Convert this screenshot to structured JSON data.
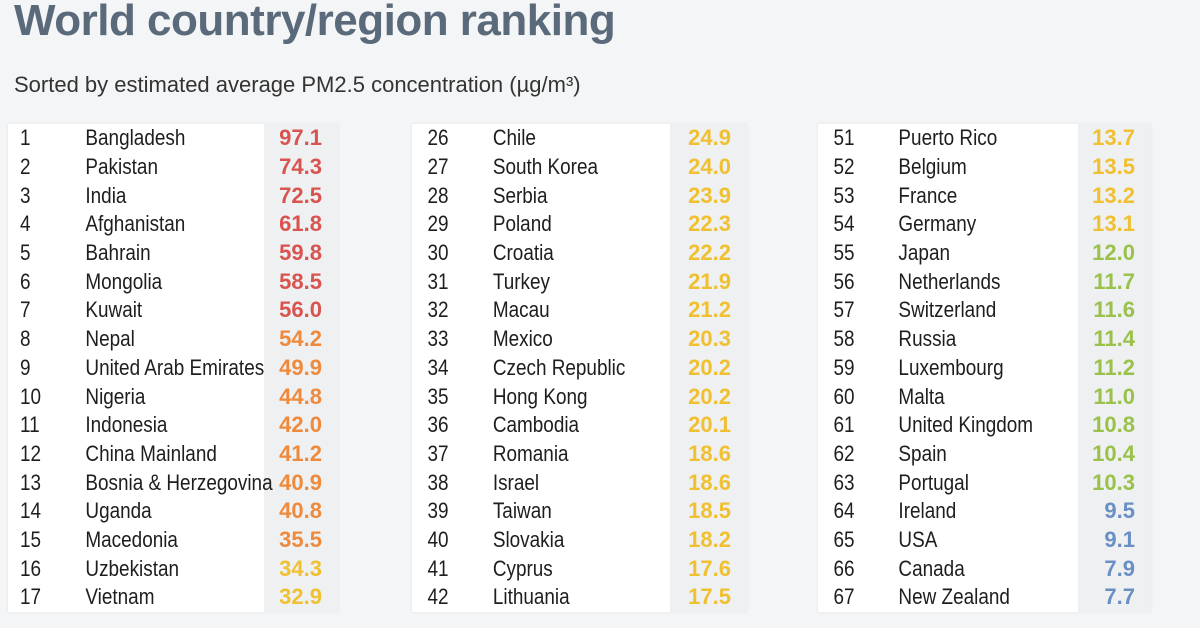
{
  "header": {
    "title": "World country/region ranking",
    "subtitle": "Sorted by estimated average PM2.5 concentration (µg/m³)"
  },
  "colors": {
    "red": "#d9534f",
    "orange": "#ef8a3c",
    "yellow": "#f0c030",
    "green": "#9ac14a",
    "blue": "#6a8fc4"
  },
  "chart_data": {
    "type": "table",
    "title": "World country/region ranking",
    "subtitle": "Sorted by estimated average PM2.5 concentration (µg/m³)",
    "columns": [
      [
        {
          "rank": "1",
          "country": "Bangladesh",
          "value": "97.1",
          "color": "red"
        },
        {
          "rank": "2",
          "country": "Pakistan",
          "value": "74.3",
          "color": "red"
        },
        {
          "rank": "3",
          "country": "India",
          "value": "72.5",
          "color": "red"
        },
        {
          "rank": "4",
          "country": "Afghanistan",
          "value": "61.8",
          "color": "red"
        },
        {
          "rank": "5",
          "country": "Bahrain",
          "value": "59.8",
          "color": "red"
        },
        {
          "rank": "6",
          "country": "Mongolia",
          "value": "58.5",
          "color": "red"
        },
        {
          "rank": "7",
          "country": "Kuwait",
          "value": "56.0",
          "color": "red"
        },
        {
          "rank": "8",
          "country": "Nepal",
          "value": "54.2",
          "color": "orange"
        },
        {
          "rank": "9",
          "country": "United Arab Emirates",
          "value": "49.9",
          "color": "orange"
        },
        {
          "rank": "10",
          "country": "Nigeria",
          "value": "44.8",
          "color": "orange"
        },
        {
          "rank": "11",
          "country": "Indonesia",
          "value": "42.0",
          "color": "orange"
        },
        {
          "rank": "12",
          "country": "China Mainland",
          "value": "41.2",
          "color": "orange"
        },
        {
          "rank": "13",
          "country": "Bosnia & Herzegovina",
          "value": "40.9",
          "color": "orange"
        },
        {
          "rank": "14",
          "country": "Uganda",
          "value": "40.8",
          "color": "orange"
        },
        {
          "rank": "15",
          "country": "Macedonia",
          "value": "35.5",
          "color": "orange"
        },
        {
          "rank": "16",
          "country": "Uzbekistan",
          "value": "34.3",
          "color": "yellow"
        },
        {
          "rank": "17",
          "country": "Vietnam",
          "value": "32.9",
          "color": "yellow"
        }
      ],
      [
        {
          "rank": "26",
          "country": "Chile",
          "value": "24.9",
          "color": "yellow"
        },
        {
          "rank": "27",
          "country": "South Korea",
          "value": "24.0",
          "color": "yellow"
        },
        {
          "rank": "28",
          "country": "Serbia",
          "value": "23.9",
          "color": "yellow"
        },
        {
          "rank": "29",
          "country": "Poland",
          "value": "22.3",
          "color": "yellow"
        },
        {
          "rank": "30",
          "country": "Croatia",
          "value": "22.2",
          "color": "yellow"
        },
        {
          "rank": "31",
          "country": "Turkey",
          "value": "21.9",
          "color": "yellow"
        },
        {
          "rank": "32",
          "country": "Macau",
          "value": "21.2",
          "color": "yellow"
        },
        {
          "rank": "33",
          "country": "Mexico",
          "value": "20.3",
          "color": "yellow"
        },
        {
          "rank": "34",
          "country": "Czech Republic",
          "value": "20.2",
          "color": "yellow"
        },
        {
          "rank": "35",
          "country": "Hong Kong",
          "value": "20.2",
          "color": "yellow"
        },
        {
          "rank": "36",
          "country": "Cambodia",
          "value": "20.1",
          "color": "yellow"
        },
        {
          "rank": "37",
          "country": "Romania",
          "value": "18.6",
          "color": "yellow"
        },
        {
          "rank": "38",
          "country": "Israel",
          "value": "18.6",
          "color": "yellow"
        },
        {
          "rank": "39",
          "country": "Taiwan",
          "value": "18.5",
          "color": "yellow"
        },
        {
          "rank": "40",
          "country": "Slovakia",
          "value": "18.2",
          "color": "yellow"
        },
        {
          "rank": "41",
          "country": "Cyprus",
          "value": "17.6",
          "color": "yellow"
        },
        {
          "rank": "42",
          "country": "Lithuania",
          "value": "17.5",
          "color": "yellow"
        }
      ],
      [
        {
          "rank": "51",
          "country": "Puerto Rico",
          "value": "13.7",
          "color": "yellow"
        },
        {
          "rank": "52",
          "country": "Belgium",
          "value": "13.5",
          "color": "yellow"
        },
        {
          "rank": "53",
          "country": "France",
          "value": "13.2",
          "color": "yellow"
        },
        {
          "rank": "54",
          "country": "Germany",
          "value": "13.1",
          "color": "yellow"
        },
        {
          "rank": "55",
          "country": "Japan",
          "value": "12.0",
          "color": "green"
        },
        {
          "rank": "56",
          "country": "Netherlands",
          "value": "11.7",
          "color": "green"
        },
        {
          "rank": "57",
          "country": "Switzerland",
          "value": "11.6",
          "color": "green"
        },
        {
          "rank": "58",
          "country": "Russia",
          "value": "11.4",
          "color": "green"
        },
        {
          "rank": "59",
          "country": "Luxembourg",
          "value": "11.2",
          "color": "green"
        },
        {
          "rank": "60",
          "country": "Malta",
          "value": "11.0",
          "color": "green"
        },
        {
          "rank": "61",
          "country": "United Kingdom",
          "value": "10.8",
          "color": "green"
        },
        {
          "rank": "62",
          "country": "Spain",
          "value": "10.4",
          "color": "green"
        },
        {
          "rank": "63",
          "country": "Portugal",
          "value": "10.3",
          "color": "green"
        },
        {
          "rank": "64",
          "country": "Ireland",
          "value": "9.5",
          "color": "blue"
        },
        {
          "rank": "65",
          "country": "USA",
          "value": "9.1",
          "color": "blue"
        },
        {
          "rank": "66",
          "country": "Canada",
          "value": "7.9",
          "color": "blue"
        },
        {
          "rank": "67",
          "country": "New Zealand",
          "value": "7.7",
          "color": "blue"
        }
      ]
    ]
  }
}
